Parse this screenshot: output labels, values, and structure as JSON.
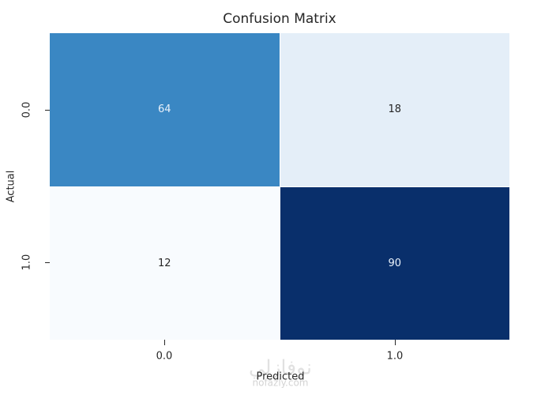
{
  "chart_data": {
    "type": "heatmap",
    "title": "Confusion Matrix",
    "xlabel": "Predicted",
    "ylabel": "Actual",
    "x_tick_labels": [
      "0.0",
      "1.0"
    ],
    "y_tick_labels": [
      "0.0",
      "1.0"
    ],
    "matrix": [
      [
        64,
        18
      ],
      [
        12,
        90
      ]
    ],
    "cell_colors": [
      [
        "#3a87c3",
        "#e4eef8"
      ],
      [
        "#f8fbfe",
        "#092f6b"
      ]
    ],
    "cell_text_colors": [
      [
        "#e9f1fa",
        "#262626"
      ],
      [
        "#262626",
        "#e9f1fa"
      ]
    ],
    "colormap": "Blues",
    "value_range": [
      12,
      90
    ],
    "grid": false,
    "legend": "none",
    "colorbar": false
  },
  "watermark": {
    "logo_text": "نوفازلي",
    "site_text": "nofazly.com"
  }
}
